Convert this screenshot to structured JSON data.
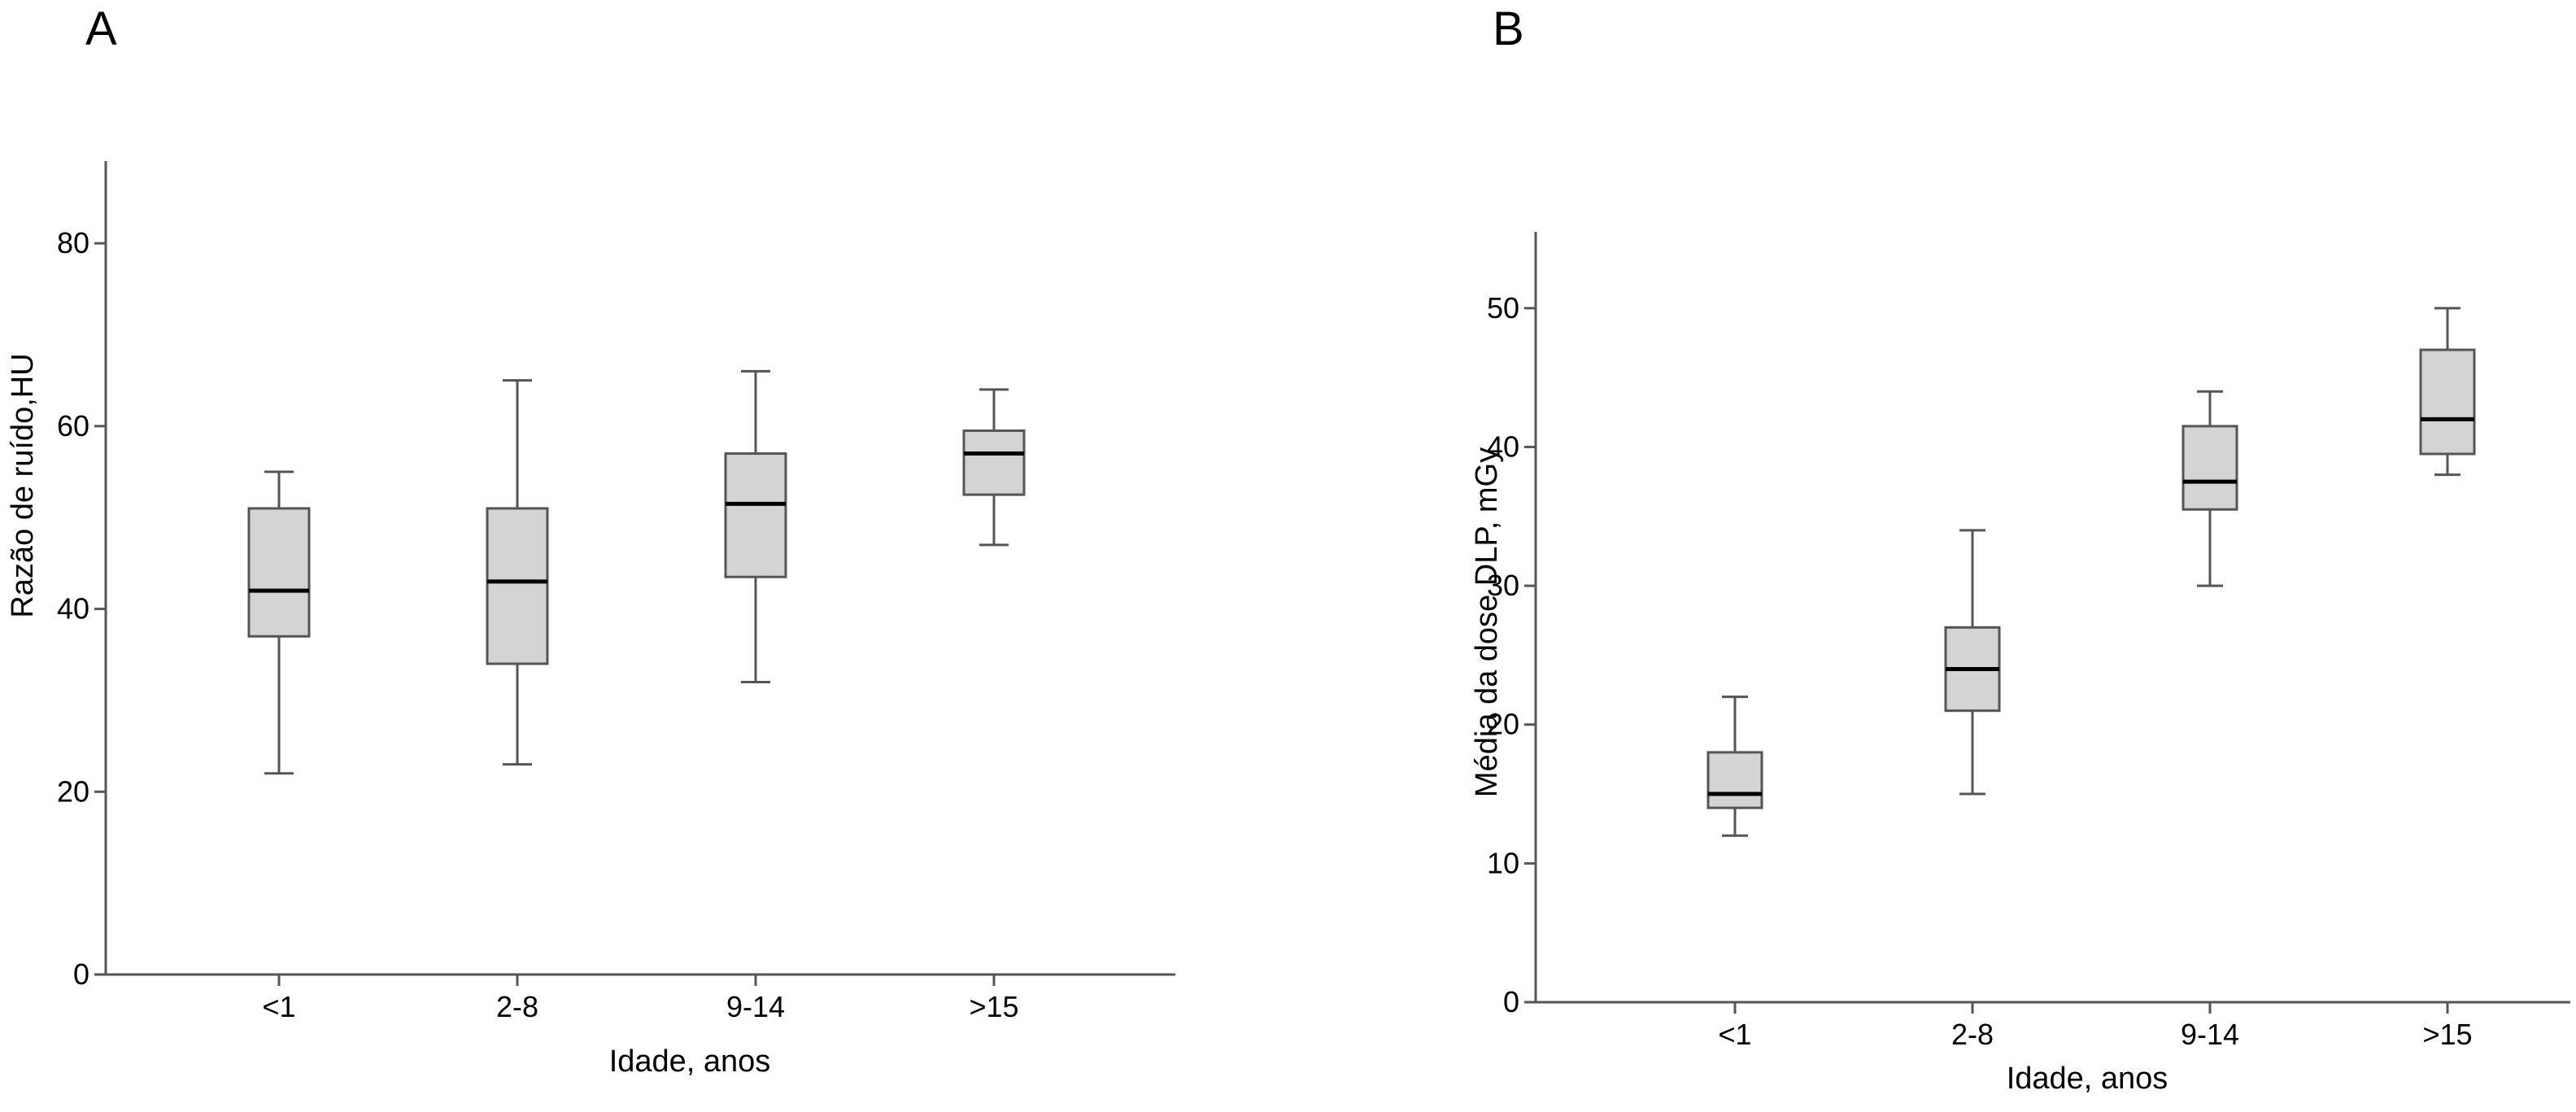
{
  "chart_data": [
    {
      "type": "boxplot",
      "panel_label": "A",
      "xlabel": "Idade, anos",
      "ylabel": "Razão de ruído,HU",
      "ylim": [
        0,
        89
      ],
      "yticks": [
        0,
        20,
        40,
        60,
        80
      ],
      "categories": [
        "<1",
        "2-8",
        "9-14",
        ">15"
      ],
      "boxes": [
        {
          "category": "<1",
          "min": 22,
          "q1": 37,
          "median": 42,
          "q3": 51,
          "max": 55
        },
        {
          "category": "2-8",
          "min": 23,
          "q1": 34,
          "median": 43,
          "q3": 51,
          "max": 65
        },
        {
          "category": "9-14",
          "min": 32,
          "q1": 43.5,
          "median": 51.5,
          "q3": 57,
          "max": 66
        },
        {
          "category": ">15",
          "min": 47,
          "q1": 52.5,
          "median": 57,
          "q3": 59.5,
          "max": 64
        }
      ],
      "box_fill": "#d4d4d4",
      "line_color": "#555555",
      "median_color": "#000000",
      "grid": false
    },
    {
      "type": "boxplot",
      "panel_label": "B",
      "xlabel": "Idade, anos",
      "ylabel": "Média da dose DLP, mGy",
      "ylim": [
        0,
        55.5
      ],
      "yticks": [
        0,
        10,
        20,
        30,
        40,
        50
      ],
      "categories": [
        "<1",
        "2-8",
        "9-14",
        ">15"
      ],
      "boxes": [
        {
          "category": "<1",
          "min": 12,
          "q1": 14,
          "median": 15,
          "q3": 18,
          "max": 22
        },
        {
          "category": "2-8",
          "min": 15,
          "q1": 21,
          "median": 24,
          "q3": 27,
          "max": 34
        },
        {
          "category": "9-14",
          "min": 30,
          "q1": 35.5,
          "median": 37.5,
          "q3": 41.5,
          "max": 44
        },
        {
          "category": ">15",
          "min": 38,
          "q1": 39.5,
          "median": 42,
          "q3": 47,
          "max": 50
        }
      ],
      "box_fill": "#d4d4d4",
      "line_color": "#555555",
      "median_color": "#000000",
      "grid": false
    }
  ]
}
